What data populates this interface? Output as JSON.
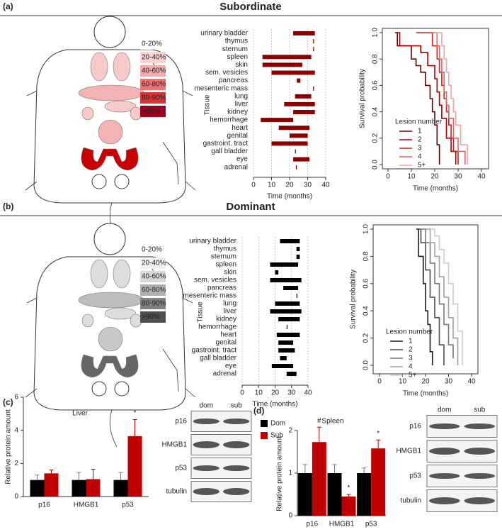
{
  "panels": [
    {
      "label": "(a)",
      "title": "Subordinate",
      "tissue_legend": {
        "labels": [
          "0-20%",
          "20-40%",
          "40-60%",
          "60-80%",
          "80-90%",
          ">90%"
        ],
        "colors": [
          "#ffffff",
          "#fbd3d3",
          "#f5a9a9",
          "#ee7272",
          "#d93434",
          "#a00020"
        ]
      }
    },
    {
      "label": "(b)",
      "title": "Dominant",
      "tissue_legend": {
        "labels": [
          "0-20%",
          "20-40%",
          "40-60%",
          "60-80%",
          "80-90%",
          ">90%"
        ],
        "colors": [
          "#ffffff",
          "#f0f0f0",
          "#d8d8d8",
          "#b0b0b0",
          "#808080",
          "#505050"
        ]
      }
    },
    {
      "label": "(c)",
      "blot": {
        "columns": [
          "dom",
          "sub"
        ],
        "rows": [
          "p16",
          "HMGB1",
          "p53",
          "tubulin"
        ]
      }
    },
    {
      "label": "(d)",
      "blot": {
        "columns": [
          "dom",
          "sub"
        ],
        "rows": [
          "p16",
          "HMGB1",
          "p53",
          "tubulin"
        ]
      }
    }
  ],
  "chart_data": [
    {
      "type": "range",
      "x_label": "Time (months)",
      "y_label": "Tissue",
      "color": "#8b0000",
      "grid": true,
      "categories": [
        "urinary bladder",
        "thymus",
        "sternum",
        "spleen",
        "skin",
        "sem. vesicles",
        "pancreas",
        "mesenteric mass",
        "lung",
        "liver",
        "kidney",
        "hemorrhage",
        "heart",
        "genital",
        "gastroint. tract",
        "gall bladder",
        "eye",
        "adrenal"
      ],
      "start": [
        22,
        33,
        33,
        5,
        5,
        10,
        24,
        33,
        23,
        17,
        22,
        4,
        14,
        20,
        10,
        23,
        22,
        23.5
      ],
      "end": [
        34,
        33.5,
        33.5,
        32,
        27,
        34,
        26,
        33.5,
        32,
        34,
        34,
        22,
        31,
        30,
        30,
        23.5,
        31,
        24
      ],
      "xlim": [
        0,
        40
      ],
      "xticks": [
        0,
        10,
        20,
        30,
        40
      ]
    },
    {
      "type": "step",
      "x_label": "Time (months)",
      "y_label": "Survival probability",
      "legend_title": "Lesion number",
      "xlim": [
        0,
        40
      ],
      "xticks": [
        0,
        10,
        20,
        30,
        40
      ],
      "ylim": [
        0,
        1
      ],
      "yticks": [
        {
          "value": 0,
          "label": "0.0"
        },
        0.2,
        0.4,
        0.6,
        0.8,
        {
          "value": 1,
          "label": "1.0"
        }
      ],
      "series": [
        {
          "name": "1",
          "color": "#6b0000",
          "x": [
            3,
            4,
            10,
            12,
            14,
            16,
            18,
            19,
            20,
            21,
            22
          ],
          "values": [
            1,
            0.9,
            0.8,
            0.75,
            0.7,
            0.6,
            0.5,
            0.4,
            0.3,
            0.15,
            0
          ]
        },
        {
          "name": "2",
          "color": "#a80000",
          "x": [
            3,
            5,
            14,
            17,
            20,
            21,
            22,
            23,
            25,
            27,
            29
          ],
          "values": [
            1,
            0.9,
            0.85,
            0.75,
            0.65,
            0.55,
            0.45,
            0.35,
            0.2,
            0.1,
            0
          ]
        },
        {
          "name": "3",
          "color": "#cc2020",
          "x": [
            12,
            19,
            21,
            22,
            23,
            24,
            25,
            26,
            27,
            28,
            30
          ],
          "values": [
            1,
            0.9,
            0.8,
            0.7,
            0.6,
            0.5,
            0.4,
            0.3,
            0.2,
            0.1,
            0
          ]
        },
        {
          "name": "4",
          "color": "#e06464",
          "x": [
            18,
            21,
            22,
            23,
            24,
            25,
            26,
            28,
            30,
            33
          ],
          "values": [
            1,
            0.9,
            0.8,
            0.7,
            0.55,
            0.45,
            0.35,
            0.2,
            0.1,
            0
          ]
        },
        {
          "name": "5+",
          "color": "#f2a6a6",
          "x": [
            20,
            23,
            24,
            25,
            26,
            27,
            28,
            29,
            31,
            34
          ],
          "values": [
            1,
            0.9,
            0.8,
            0.7,
            0.6,
            0.5,
            0.4,
            0.3,
            0.15,
            0
          ]
        }
      ]
    },
    {
      "type": "range",
      "x_label": "Time (months)",
      "y_label": "Tissue",
      "color": "#000000",
      "grid": true,
      "categories": [
        "urinary bladder",
        "thymus",
        "sternum",
        "spleen",
        "skin",
        "sem. vesicles",
        "pancreas",
        "mesenteric mass",
        "lung",
        "liver",
        "kidney",
        "hemorrhage",
        "heart",
        "genital",
        "gastroint. tract",
        "gall bladder",
        "eye",
        "adrenal"
      ],
      "start": [
        23,
        33,
        33,
        17,
        20,
        17,
        25,
        33,
        20,
        17,
        22,
        27,
        21,
        22,
        22,
        23,
        18,
        27
      ],
      "end": [
        35,
        35,
        35,
        34,
        22,
        36,
        34,
        33.5,
        35,
        36,
        35,
        27.5,
        35,
        31,
        32,
        27,
        31,
        33
      ],
      "xlim": [
        0,
        40
      ],
      "xticks": [
        0,
        10,
        20,
        30,
        40
      ]
    },
    {
      "type": "step",
      "x_label": "Time (months)",
      "y_label": "Survival probability",
      "legend_title": "Lesion number",
      "xlim": [
        0,
        40
      ],
      "xticks": [
        0,
        10,
        20,
        30,
        40
      ],
      "ylim": [
        0,
        1
      ],
      "yticks": [
        {
          "value": 0,
          "label": "0.0"
        },
        0.2,
        0.4,
        0.6,
        0.8,
        {
          "value": 1,
          "label": "1.0"
        }
      ],
      "series": [
        {
          "name": "1",
          "color": "#1a1a1a",
          "x": [
            16,
            17,
            19,
            20,
            21,
            22,
            23
          ],
          "values": [
            1,
            0.8,
            0.6,
            0.4,
            0.3,
            0.1,
            0
          ]
        },
        {
          "name": "2",
          "color": "#4d4d4d",
          "x": [
            17,
            18,
            20,
            22,
            24,
            26,
            28
          ],
          "values": [
            1,
            0.9,
            0.7,
            0.5,
            0.35,
            0.15,
            0
          ]
        },
        {
          "name": "3",
          "color": "#777777",
          "x": [
            18,
            20,
            22,
            24,
            26,
            28,
            30,
            32
          ],
          "values": [
            1,
            0.9,
            0.75,
            0.6,
            0.45,
            0.3,
            0.15,
            0.05
          ]
        },
        {
          "name": "4",
          "color": "#a0a0a0",
          "x": [
            20,
            22,
            24,
            26,
            28,
            30,
            32,
            34
          ],
          "values": [
            1,
            0.9,
            0.8,
            0.65,
            0.5,
            0.35,
            0.2,
            0
          ]
        },
        {
          "name": "5+",
          "color": "#cccccc",
          "x": [
            22,
            24,
            26,
            28,
            30,
            32,
            34,
            36
          ],
          "values": [
            1,
            0.95,
            0.85,
            0.75,
            0.6,
            0.45,
            0.25,
            0
          ]
        }
      ]
    },
    {
      "type": "bar",
      "title": "Liver",
      "y_label": "Relative protein amount",
      "categories": [
        "p16",
        "HMGB1",
        "p53"
      ],
      "ylim": [
        0,
        6
      ],
      "yticks": [
        0,
        2,
        4,
        6
      ],
      "series": [
        {
          "color": "#000000",
          "values": [
            1,
            1,
            1
          ],
          "errors": [
            0.3,
            0.45,
            0.45
          ],
          "markers": [
            null,
            null,
            null
          ]
        },
        {
          "color": "#c00000",
          "values": [
            1.4,
            1.05,
            3.65
          ],
          "errors": [
            0.2,
            0.6,
            1.0
          ],
          "markers": [
            null,
            null,
            "*"
          ]
        }
      ]
    },
    {
      "type": "bar",
      "title": "Spleen",
      "y_label": "Relative protein amount",
      "categories": [
        "p16",
        "HMGB1",
        "p53"
      ],
      "ylim": [
        0,
        2
      ],
      "yticks": [
        0,
        1,
        2
      ],
      "series": [
        {
          "name": "Dom",
          "color": "#000000",
          "values": [
            1,
            1,
            1
          ],
          "errors": [
            0.2,
            0.2,
            0.12
          ],
          "markers": [
            null,
            null,
            null
          ]
        },
        {
          "name": "Sub",
          "color": "#c00000",
          "values": [
            1.73,
            0.45,
            1.58
          ],
          "errors": [
            0.35,
            0.05,
            0.2
          ],
          "markers": [
            "#",
            "*",
            "*"
          ]
        }
      ]
    }
  ]
}
